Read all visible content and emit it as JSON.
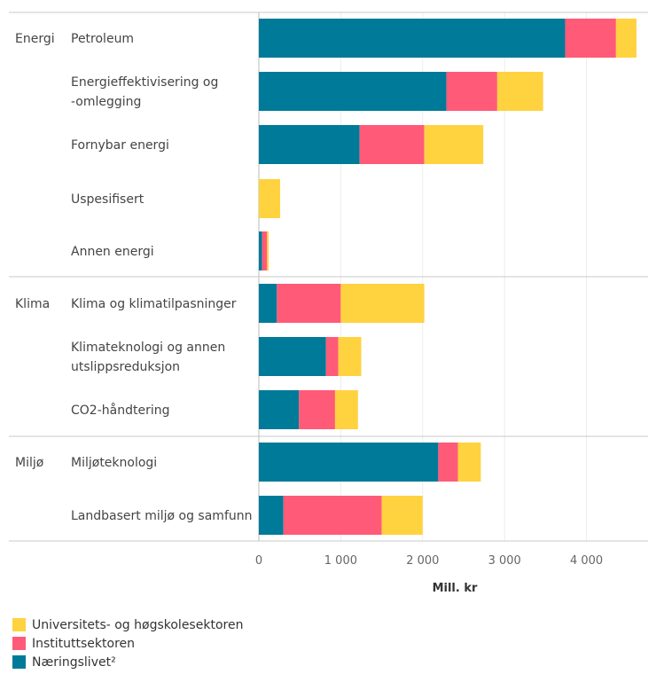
{
  "chart_data": {
    "type": "bar",
    "orientation": "horizontal",
    "stacked": true,
    "xlabel": "Mill. kr",
    "xlim": [
      0,
      4700
    ],
    "xticks": [
      0,
      1000,
      2000,
      3000,
      4000
    ],
    "xtick_labels": [
      "0",
      "1 000",
      "2 000",
      "3 000",
      "4 000"
    ],
    "groups": [
      {
        "name": "Energi",
        "categories": [
          "Petroleum",
          "Energieffektivisering og -omlegging",
          "Fornybar energi",
          "Uspesifisert",
          "Annen energi"
        ]
      },
      {
        "name": "Klima",
        "categories": [
          "Klima og klimatilpasninger",
          "Klimateknologi og annen utslippsreduksjon",
          "CO2-håndtering"
        ]
      },
      {
        "name": "Miljø",
        "categories": [
          "Miljøteknologi",
          "Landbasert miljø og samfunn"
        ]
      }
    ],
    "category_lines": [
      [
        "Petroleum"
      ],
      [
        "Energieffektivisering og",
        "-omlegging"
      ],
      [
        "Fornybar energi"
      ],
      [
        "Uspesifisert"
      ],
      [
        "Annen energi"
      ],
      [
        "Klima og klimatilpasninger"
      ],
      [
        "Klimateknologi og annen",
        "utslippsreduksjon"
      ],
      [
        "CO2-håndtering"
      ],
      [
        "Miljøteknologi"
      ],
      [
        "Landbasert miljø og samfunn"
      ]
    ],
    "series": [
      {
        "name": "Næringslivet²",
        "color": "#007A99",
        "values": [
          3740,
          2290,
          1230,
          0,
          40,
          220,
          820,
          490,
          2190,
          300
        ]
      },
      {
        "name": "Instituttsektoren",
        "color": "#FF5A78",
        "values": [
          620,
          620,
          790,
          0,
          60,
          780,
          150,
          440,
          240,
          1200
        ]
      },
      {
        "name": "Universitets- og høgskolesektoren",
        "color": "#FFD23F",
        "values": [
          250,
          560,
          720,
          260,
          20,
          1020,
          280,
          280,
          280,
          500
        ]
      }
    ],
    "legend_order": [
      "Universitets- og høgskolesektoren",
      "Instituttsektoren",
      "Næringslivet²"
    ]
  }
}
